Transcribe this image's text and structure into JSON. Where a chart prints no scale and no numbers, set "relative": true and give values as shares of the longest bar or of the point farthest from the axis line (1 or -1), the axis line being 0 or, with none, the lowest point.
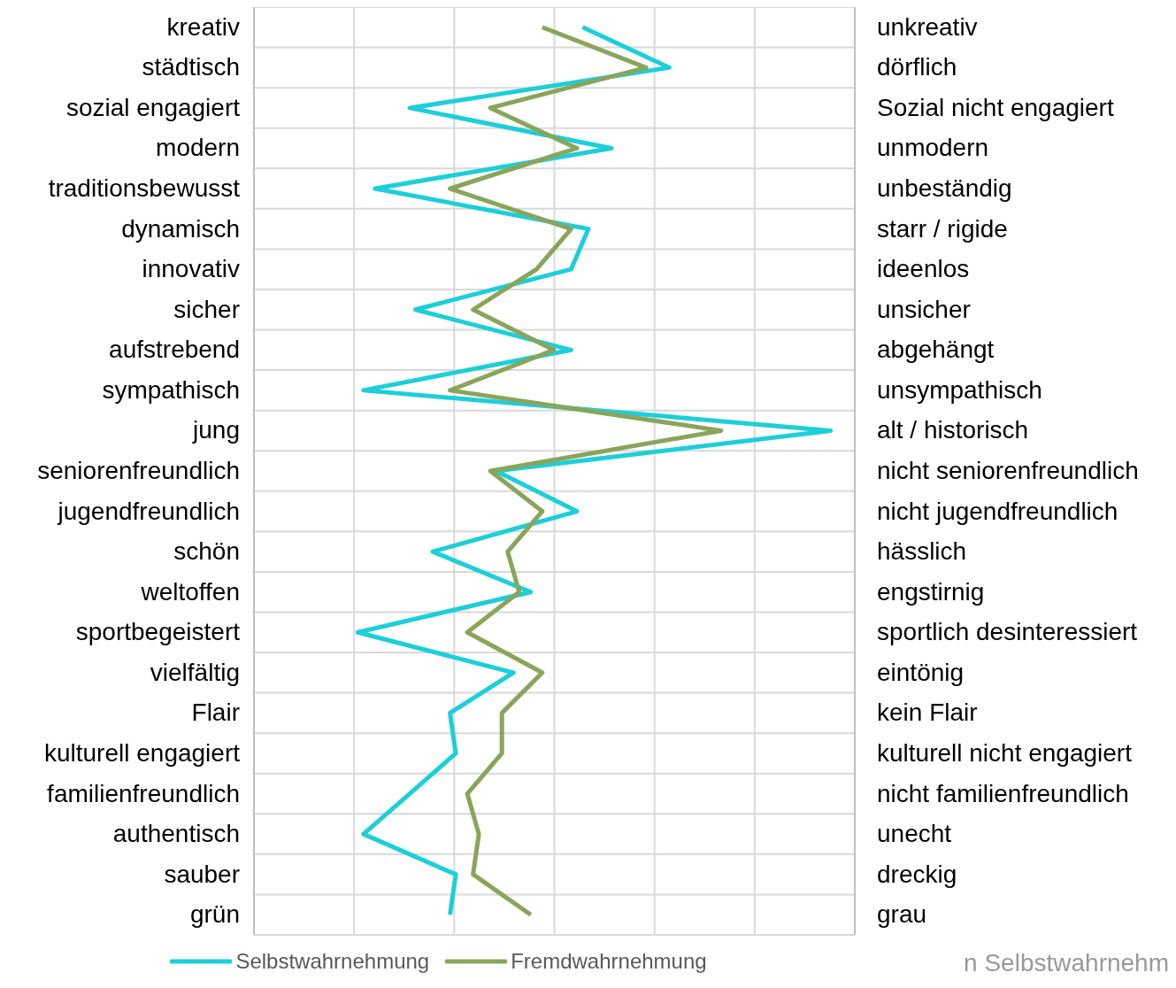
{
  "chart_data": {
    "type": "line",
    "orientation": "horizontal",
    "relative": true,
    "grid": true,
    "legend": "bottom",
    "marker": "none",
    "line_style": "solid",
    "categories": [
      "kreativ",
      "städtisch",
      "sozial engagiert",
      "modern",
      "traditionsbewusst",
      "dynamisch",
      "innovativ",
      "sicher",
      "aufstrebend",
      "sympathisch",
      "jung",
      "seniorenfreundlich",
      "jugendfreundlich",
      "schön",
      "weltoffen",
      "sportbegeistert",
      "vielfältig",
      "Flair",
      "kulturell engagiert",
      "familienfreundlich",
      "authentisch",
      "sauber",
      "grün"
    ],
    "y2_categories": [
      "unkreativ",
      "dörflich",
      "Sozial nicht engagiert",
      "unmodern",
      "unbeständig",
      "starr / rigide",
      "ideenlos",
      "unsicher",
      "abgehängt",
      "unsympathisch",
      "alt / historisch",
      "nicht seniorenfreundlich",
      "nicht jugendfreundlich",
      "hässlich",
      "engstirnig",
      "sportlich desinteressiert",
      "eintönig",
      "kein Flair",
      "kulturell nicht engagiert",
      "nicht familienfreundlich",
      "unecht",
      "dreckig",
      "grau"
    ],
    "series": [
      {
        "name": "Selbstwahrnehmung",
        "color": "#1ccfd9",
        "values": [
          0.57,
          0.72,
          0.27,
          0.62,
          0.21,
          0.58,
          0.55,
          0.28,
          0.55,
          0.19,
          1.0,
          0.42,
          0.56,
          0.31,
          0.48,
          0.18,
          0.45,
          0.34,
          0.35,
          0.27,
          0.19,
          0.35,
          0.34
        ]
      },
      {
        "name": "Fremdwahrnehmung",
        "color": "#8aa55a",
        "values": [
          0.5,
          0.68,
          0.41,
          0.56,
          0.34,
          0.55,
          0.49,
          0.38,
          0.52,
          0.34,
          0.81,
          0.41,
          0.5,
          0.44,
          0.46,
          0.37,
          0.5,
          0.43,
          0.43,
          0.37,
          0.39,
          0.38,
          0.48
        ]
      }
    ],
    "annotations": [
      "n Selbstwahrnehm"
    ]
  }
}
